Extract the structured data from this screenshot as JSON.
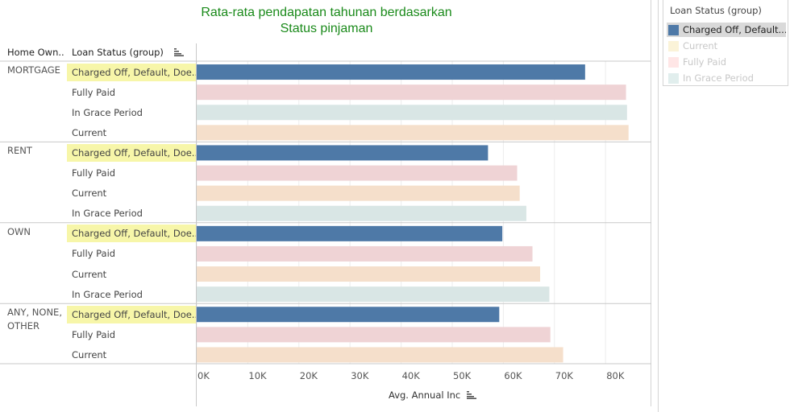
{
  "title": [
    "Rata-rata pendapatan tahunan berdasarkan",
    "Status pinjaman"
  ],
  "header": {
    "col1": "Home Own..",
    "col2": "Loan Status (group)"
  },
  "legend": {
    "title": "Loan Status (group)",
    "items": [
      {
        "label": "Charged Off, Default...",
        "color": "#4e79a7",
        "selected": true
      },
      {
        "label": "Current",
        "color": "#f1ce63",
        "selected": false
      },
      {
        "label": "Fully Paid",
        "color": "#ff9d9a",
        "selected": false
      },
      {
        "label": "In Grace Period",
        "color": "#86bcb6",
        "selected": false
      }
    ]
  },
  "chart_data": {
    "type": "bar",
    "orientation": "horizontal",
    "title": "Rata-rata pendapatan tahunan berdasarkan Status pinjaman",
    "xlabel": "Avg. Annual Inc",
    "xlim": [
      0,
      88000
    ],
    "xticks": [
      "0K",
      "10K",
      "20K",
      "30K",
      "40K",
      "50K",
      "60K",
      "70K",
      "80K"
    ],
    "colors": {
      "Charged Off, Default, Doe...": "#4e79a7",
      "Fully Paid": "#efd3d5",
      "Current": "#f5dfcb",
      "In Grace Period": "#d9e6e5"
    },
    "groups": [
      {
        "name": "MORTGAGE",
        "rows": [
          {
            "status": "Charged Off, Default, Doe...",
            "value": 76000
          },
          {
            "status": "Fully Paid",
            "value": 84000
          },
          {
            "status": "In Grace Period",
            "value": 84200
          },
          {
            "status": "Current",
            "value": 84500
          }
        ]
      },
      {
        "name": "RENT",
        "rows": [
          {
            "status": "Charged Off, Default, Doe...",
            "value": 57000
          },
          {
            "status": "Fully Paid",
            "value": 62700
          },
          {
            "status": "Current",
            "value": 63200
          },
          {
            "status": "In Grace Period",
            "value": 64500
          }
        ]
      },
      {
        "name": "OWN",
        "rows": [
          {
            "status": "Charged Off, Default, Doe...",
            "value": 59800
          },
          {
            "status": "Fully Paid",
            "value": 65700
          },
          {
            "status": "Current",
            "value": 67200
          },
          {
            "status": "In Grace Period",
            "value": 69000
          }
        ]
      },
      {
        "name": "ANY, NONE, OTHER",
        "rows": [
          {
            "status": "Charged Off, Default, Doe...",
            "value": 59200
          },
          {
            "status": "Fully Paid",
            "value": 69200
          },
          {
            "status": "Current",
            "value": 71700
          }
        ]
      }
    ]
  }
}
